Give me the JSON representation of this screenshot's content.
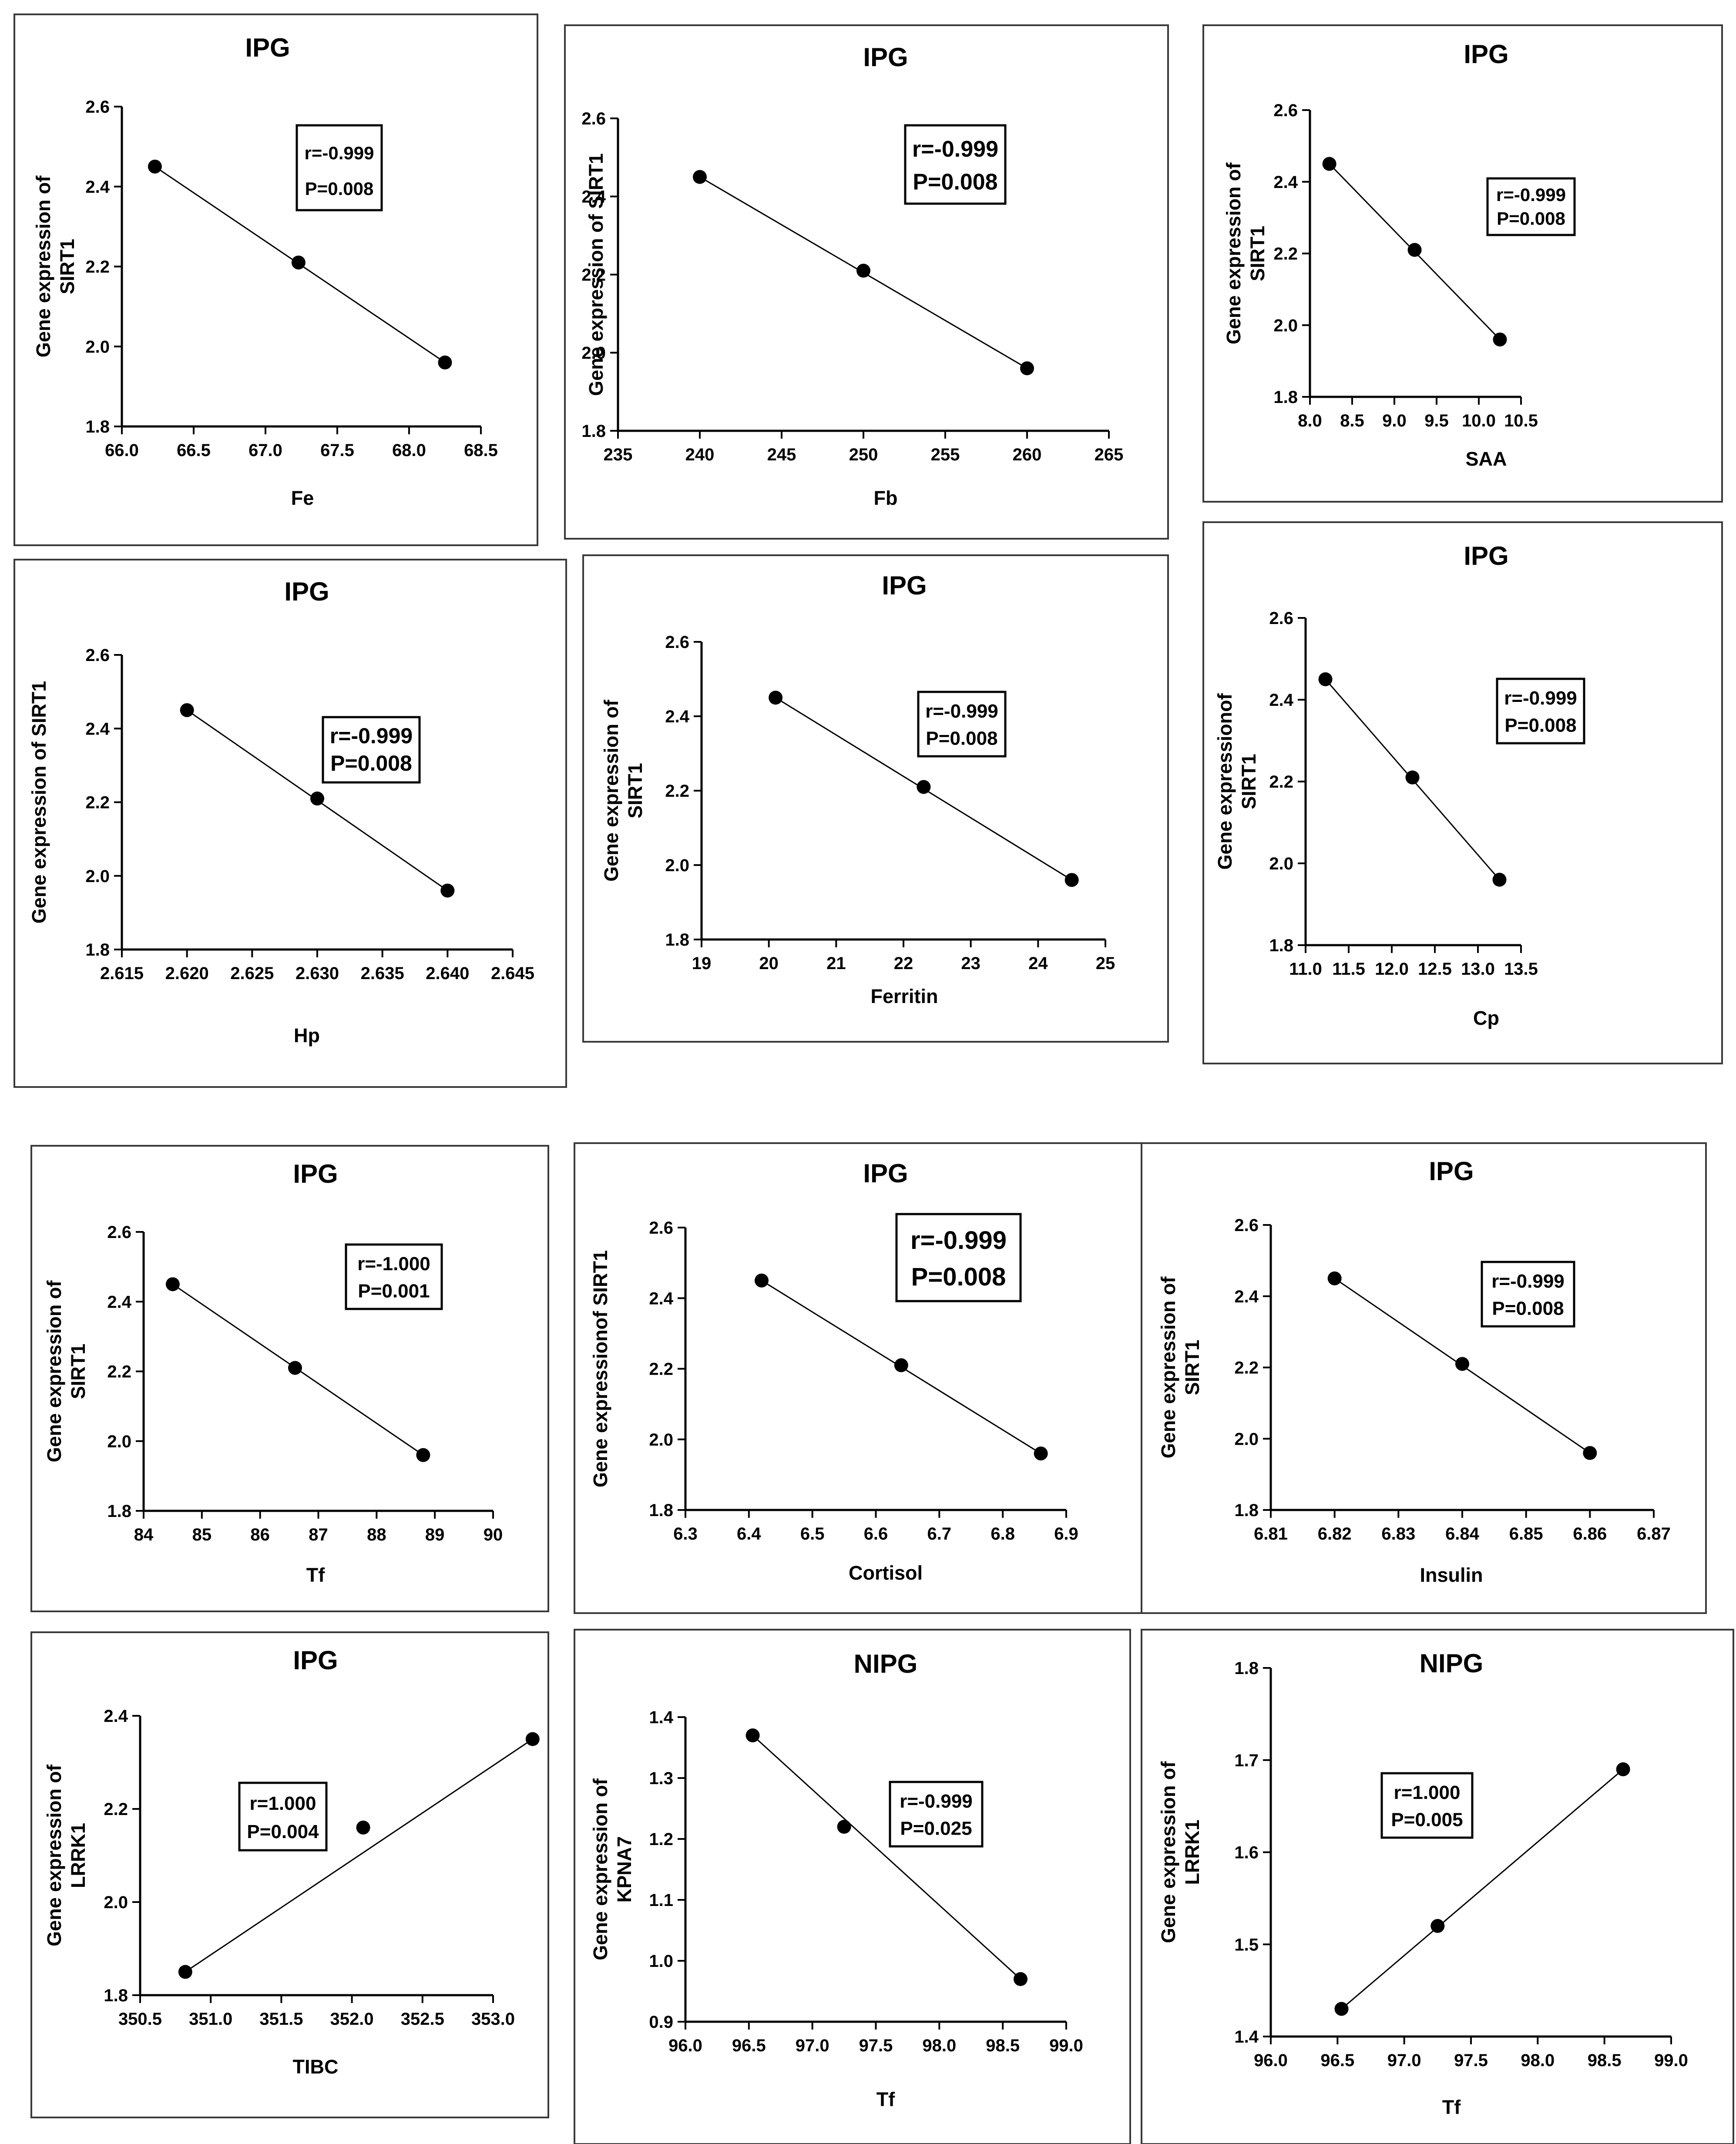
{
  "chart_data": [
    {
      "type": "line",
      "title": "IPG",
      "xlabel": "Fe",
      "ylabel": [
        "Gene expression of",
        "SIRT1"
      ],
      "x": [
        66.23,
        67.23,
        68.25
      ],
      "y": [
        2.45,
        2.21,
        1.96
      ],
      "xlim": [
        66.0,
        68.5
      ],
      "ylim": [
        1.8,
        2.6
      ],
      "xticks": [
        66.0,
        66.5,
        67.0,
        67.5,
        68.0,
        68.5
      ],
      "xtick_labels": [
        "66.0",
        "66.5",
        "67.0",
        "67.5",
        "68.0",
        "68.5"
      ],
      "yticks": [
        1.8,
        2.0,
        2.2,
        2.4,
        2.6
      ],
      "ytick_labels": [
        "1.8",
        "2.0",
        "2.2",
        "2.4",
        "2.6"
      ],
      "stat_r": "r=-0.999",
      "stat_p": "P=0.008"
    },
    {
      "type": "line",
      "title": "IPG",
      "xlabel": "Fb",
      "ylabel": [
        "Gene expression of SIRT1"
      ],
      "x": [
        240,
        250,
        260
      ],
      "y": [
        2.45,
        2.21,
        1.96
      ],
      "xlim": [
        235,
        265
      ],
      "ylim": [
        1.8,
        2.6
      ],
      "xticks": [
        235,
        240,
        245,
        250,
        255,
        260,
        265
      ],
      "xtick_labels": [
        "235",
        "240",
        "245",
        "250",
        "255",
        "260",
        "265"
      ],
      "yticks": [
        1.8,
        2.0,
        2.2,
        2.4,
        2.6
      ],
      "ytick_labels": [
        "1.8",
        "2.0",
        "2.2",
        "2.4",
        "2.6"
      ],
      "stat_r": "r=-0.999",
      "stat_p": "P=0.008"
    },
    {
      "type": "line",
      "title": "IPG",
      "xlabel": "SAA",
      "ylabel": [
        "Gene expression of",
        "SIRT1"
      ],
      "x": [
        8.23,
        9.24,
        10.25
      ],
      "y": [
        2.45,
        2.21,
        1.96
      ],
      "xlim": [
        8.0,
        10.5
      ],
      "ylim": [
        1.8,
        2.6
      ],
      "xticks": [
        8.0,
        8.5,
        9.0,
        9.5,
        10.0,
        10.5
      ],
      "xtick_labels": [
        "8.0",
        "8.5",
        "9.0",
        "9.5",
        "10.0",
        "10.5"
      ],
      "yticks": [
        1.8,
        2.0,
        2.2,
        2.4,
        2.6
      ],
      "ytick_labels": [
        "1.8",
        "2.0",
        "2.2",
        "2.4",
        "2.6"
      ],
      "stat_r": "r=-0.999",
      "stat_p": "P=0.008"
    },
    {
      "type": "line",
      "title": "IPG",
      "xlabel": "Hp",
      "ylabel": [
        "Gene expression of SIRT1"
      ],
      "x": [
        2.62,
        2.63,
        2.64
      ],
      "y": [
        2.45,
        2.21,
        1.96
      ],
      "xlim": [
        2.615,
        2.645
      ],
      "ylim": [
        1.8,
        2.6
      ],
      "xticks": [
        2.615,
        2.62,
        2.625,
        2.63,
        2.635,
        2.64,
        2.645
      ],
      "xtick_labels": [
        "2.615",
        "2.620",
        "2.625",
        "2.630",
        "2.635",
        "2.640",
        "2.645"
      ],
      "yticks": [
        1.8,
        2.0,
        2.2,
        2.4,
        2.6
      ],
      "ytick_labels": [
        "1.8",
        "2.0",
        "2.2",
        "2.4",
        "2.6"
      ],
      "stat_r": "r=-0.999",
      "stat_p": "P=0.008"
    },
    {
      "type": "line",
      "title": "IPG",
      "xlabel": "Ferritin",
      "ylabel": [
        "Gene expression of",
        "SIRT1"
      ],
      "x": [
        20.1,
        22.3,
        24.5
      ],
      "y": [
        2.45,
        2.21,
        1.96
      ],
      "xlim": [
        19,
        25
      ],
      "ylim": [
        1.8,
        2.6
      ],
      "xticks": [
        19,
        20,
        21,
        22,
        23,
        24,
        25
      ],
      "xtick_labels": [
        "19",
        "20",
        "21",
        "22",
        "23",
        "24",
        "25"
      ],
      "yticks": [
        1.8,
        2.0,
        2.2,
        2.4,
        2.6
      ],
      "ytick_labels": [
        "1.8",
        "2.0",
        "2.2",
        "2.4",
        "2.6"
      ],
      "stat_r": "r=-0.999",
      "stat_p": "P=0.008"
    },
    {
      "type": "line",
      "title": "IPG",
      "xlabel": "Cp",
      "ylabel": [
        "Gene expressionof",
        "SIRT1"
      ],
      "x": [
        11.23,
        12.24,
        13.25
      ],
      "y": [
        2.45,
        2.21,
        1.96
      ],
      "xlim": [
        11.0,
        13.5
      ],
      "ylim": [
        1.8,
        2.6
      ],
      "xticks": [
        11.0,
        11.5,
        12.0,
        12.5,
        13.0,
        13.5
      ],
      "xtick_labels": [
        "11.0",
        "11.5",
        "12.0",
        "12.5",
        "13.0",
        "13.5"
      ],
      "yticks": [
        1.8,
        2.0,
        2.2,
        2.4,
        2.6
      ],
      "ytick_labels": [
        "1.8",
        "2.0",
        "2.2",
        "2.4",
        "2.6"
      ],
      "stat_r": "r=-0.999",
      "stat_p": "P=0.008"
    },
    {
      "type": "line",
      "title": "IPG",
      "xlabel": "Tf",
      "ylabel": [
        "Gene expression of",
        "SIRT1"
      ],
      "x": [
        84.5,
        86.6,
        88.8
      ],
      "y": [
        2.45,
        2.21,
        1.96
      ],
      "xlim": [
        84,
        90
      ],
      "ylim": [
        1.8,
        2.6
      ],
      "xticks": [
        84,
        85,
        86,
        87,
        88,
        89,
        90
      ],
      "xtick_labels": [
        "84",
        "85",
        "86",
        "87",
        "88",
        "89",
        "90"
      ],
      "yticks": [
        1.8,
        2.0,
        2.2,
        2.4,
        2.6
      ],
      "ytick_labels": [
        "1.8",
        "2.0",
        "2.2",
        "2.4",
        "2.6"
      ],
      "stat_r": "r=-1.000",
      "stat_p": "P=0.001"
    },
    {
      "type": "line",
      "title": "IPG",
      "xlabel": "Cortisol",
      "ylabel": [
        "Gene expressionof SIRT1"
      ],
      "x": [
        6.42,
        6.64,
        6.86
      ],
      "y": [
        2.45,
        2.21,
        1.96
      ],
      "xlim": [
        6.3,
        6.9
      ],
      "ylim": [
        1.8,
        2.6
      ],
      "xticks": [
        6.3,
        6.4,
        6.5,
        6.6,
        6.7,
        6.8,
        6.9
      ],
      "xtick_labels": [
        "6.3",
        "6.4",
        "6.5",
        "6.6",
        "6.7",
        "6.8",
        "6.9"
      ],
      "yticks": [
        1.8,
        2.0,
        2.2,
        2.4,
        2.6
      ],
      "ytick_labels": [
        "1.8",
        "2.0",
        "2.2",
        "2.4",
        "2.6"
      ],
      "stat_r": "r=-0.999",
      "stat_p": "P=0.008"
    },
    {
      "type": "line",
      "title": "IPG",
      "xlabel": "Insulin",
      "ylabel": [
        "Gene expression of",
        "SIRT1"
      ],
      "x": [
        6.82,
        6.84,
        6.86
      ],
      "y": [
        2.45,
        2.21,
        1.96
      ],
      "xlim": [
        6.81,
        6.87
      ],
      "ylim": [
        1.8,
        2.6
      ],
      "xticks": [
        6.81,
        6.82,
        6.83,
        6.84,
        6.85,
        6.86,
        6.87
      ],
      "xtick_labels": [
        "6.81",
        "6.82",
        "6.83",
        "6.84",
        "6.85",
        "6.86",
        "6.87"
      ],
      "yticks": [
        1.8,
        2.0,
        2.2,
        2.4,
        2.6
      ],
      "ytick_labels": [
        "1.8",
        "2.0",
        "2.2",
        "2.4",
        "2.6"
      ],
      "stat_r": "r=-0.999",
      "stat_p": "P=0.008"
    },
    {
      "type": "line",
      "title": "IPG",
      "xlabel": "TIBC",
      "ylabel": [
        "Gene expression of",
        "LRRK1"
      ],
      "x": [
        350.82,
        352.08,
        353.28
      ],
      "y": [
        1.85,
        2.16,
        2.35
      ],
      "xlim": [
        350.5,
        353.0
      ],
      "ylim": [
        1.8,
        2.4
      ],
      "xticks": [
        350.5,
        351.0,
        351.5,
        352.0,
        352.5,
        353.0
      ],
      "xtick_labels": [
        "350.5",
        "351.0",
        "351.5",
        "352.0",
        "352.5",
        "353.0"
      ],
      "yticks": [
        1.8,
        2.0,
        2.2,
        2.4
      ],
      "ytick_labels": [
        "1.8",
        "2.0",
        "2.2",
        "2.4"
      ],
      "stat_r": "r=1.000",
      "stat_p": "P=0.004"
    },
    {
      "type": "line",
      "title": "NIPG",
      "xlabel": "Tf",
      "ylabel": [
        "Gene expression of",
        "KPNA7"
      ],
      "x": [
        96.53,
        97.25,
        98.64
      ],
      "y": [
        1.37,
        1.22,
        0.97
      ],
      "xlim": [
        96.0,
        99.0
      ],
      "ylim": [
        0.9,
        1.4
      ],
      "xticks": [
        96.0,
        96.5,
        97.0,
        97.5,
        98.0,
        98.5,
        99.0
      ],
      "xtick_labels": [
        "96.0",
        "96.5",
        "97.0",
        "97.5",
        "98.0",
        "98.5",
        "99.0"
      ],
      "yticks": [
        0.9,
        1.0,
        1.1,
        1.2,
        1.3,
        1.4
      ],
      "ytick_labels": [
        "0.9",
        "1.0",
        "1.1",
        "1.2",
        "1.3",
        "1.4"
      ],
      "stat_r": "r=-0.999",
      "stat_p": "P=0.025"
    },
    {
      "type": "line",
      "title": "NIPG",
      "xlabel": "Tf",
      "ylabel": [
        "Gene expression of",
        "LRRK1"
      ],
      "x": [
        96.53,
        97.25,
        98.64
      ],
      "y": [
        1.43,
        1.52,
        1.69
      ],
      "xlim": [
        96.0,
        99.0
      ],
      "ylim": [
        1.4,
        1.8
      ],
      "xticks": [
        96.0,
        96.5,
        97.0,
        97.5,
        98.0,
        98.5,
        99.0
      ],
      "xtick_labels": [
        "96.0",
        "96.5",
        "97.0",
        "97.5",
        "98.0",
        "98.5",
        "99.0"
      ],
      "yticks": [
        1.4,
        1.5,
        1.6,
        1.7,
        1.8
      ],
      "ytick_labels": [
        "1.4",
        "1.5",
        "1.6",
        "1.7",
        "1.8"
      ],
      "stat_r": "r=1.000",
      "stat_p": "P=0.005"
    }
  ]
}
